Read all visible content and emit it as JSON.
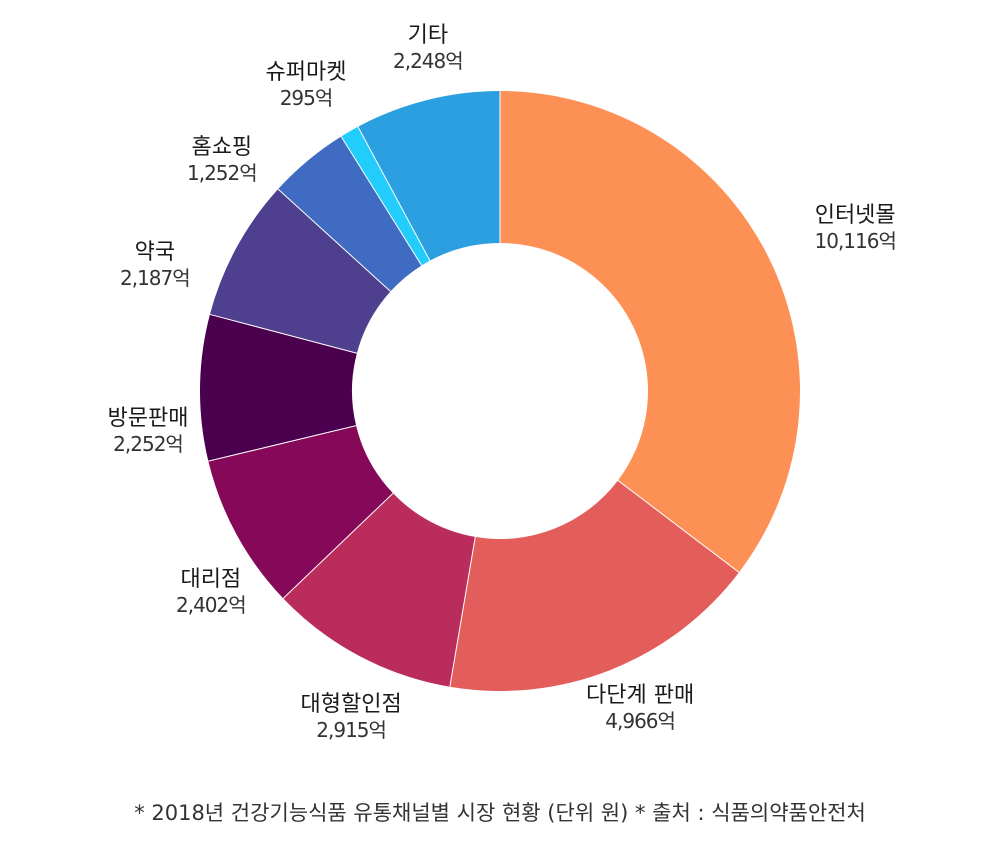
{
  "chart_data": {
    "type": "pie",
    "donut": true,
    "unit": "억",
    "slices": [
      {
        "label": "인터넷몰",
        "value": 10116,
        "value_label": "10,116억",
        "color": "#FD9155"
      },
      {
        "label": "다단계 판매",
        "value": 4966,
        "value_label": "4,966억",
        "color": "#E35D5B"
      },
      {
        "label": "대형할인점",
        "value": 2915,
        "value_label": "2,915억",
        "color": "#B92C5C"
      },
      {
        "label": "대리점",
        "value": 2402,
        "value_label": "2,402억",
        "color": "#860858"
      },
      {
        "label": "방문판매",
        "value": 2252,
        "value_label": "2,252억",
        "color": "#4B004F"
      },
      {
        "label": "약국",
        "value": 2187,
        "value_label": "2,187억",
        "color": "#4F3F8F"
      },
      {
        "label": "홈쇼핑",
        "value": 1252,
        "value_label": "1,252억",
        "color": "#3F6CC2"
      },
      {
        "label": "슈퍼마켓",
        "value": 295,
        "value_label": "295억",
        "color": "#22CDFB"
      },
      {
        "label": "기타",
        "value": 2248,
        "value_label": "2,248억",
        "color": "#2C9FE0"
      }
    ],
    "note": "* 2018년 건강기능식품 유통채널별 시장 현황 (단위 원) * 출처 : 식품의약품안전처"
  }
}
